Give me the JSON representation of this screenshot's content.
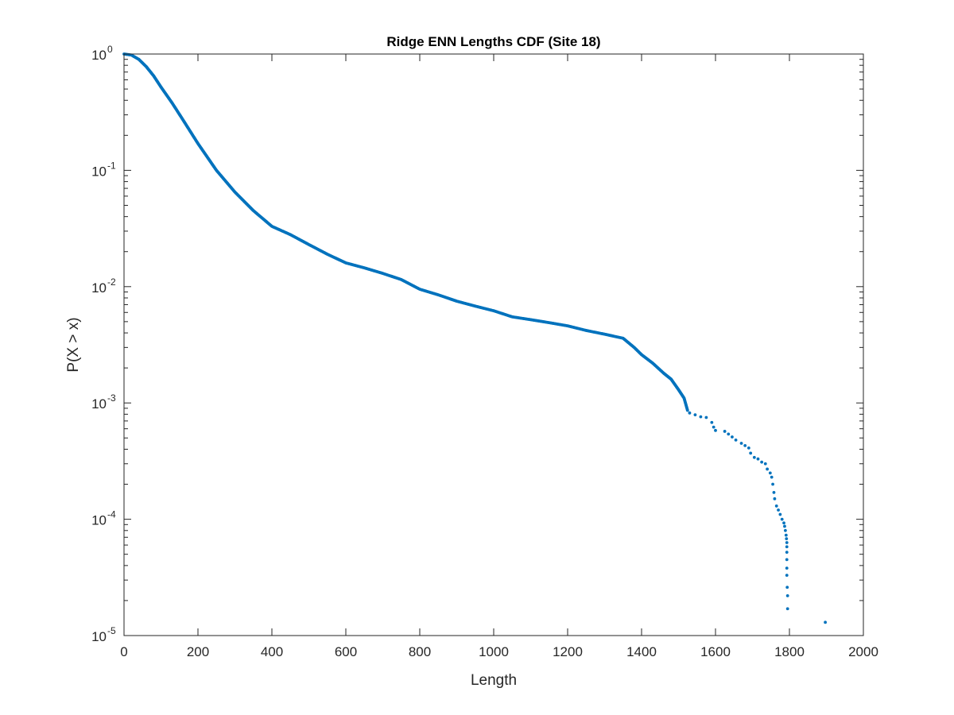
{
  "chart_data": {
    "type": "scatter",
    "title": "Ridge ENN Lengths CDF (Site 18)",
    "xlabel": "Length",
    "ylabel": "P(X > x)",
    "xlim": [
      0,
      2000
    ],
    "ylim": [
      1e-05,
      1
    ],
    "yscale": "log",
    "grid": false,
    "box": true,
    "marker_color": "#0072BD",
    "x_ticks": [
      0,
      200,
      400,
      600,
      800,
      1000,
      1200,
      1400,
      1600,
      1800,
      2000
    ],
    "y_ticks": [
      {
        "value": 1,
        "base": "10",
        "exp": "0"
      },
      {
        "value": 0.1,
        "base": "10",
        "exp": "-1"
      },
      {
        "value": 0.01,
        "base": "10",
        "exp": "-2"
      },
      {
        "value": 0.001,
        "base": "10",
        "exp": "-3"
      },
      {
        "value": 0.0001,
        "base": "10",
        "exp": "-4"
      },
      {
        "value": 1e-05,
        "base": "10",
        "exp": "-5"
      }
    ],
    "series": [
      {
        "curve_points": [
          [
            0,
            1.0
          ],
          [
            20,
            0.98
          ],
          [
            40,
            0.9
          ],
          [
            60,
            0.78
          ],
          [
            80,
            0.65
          ],
          [
            100,
            0.52
          ],
          [
            130,
            0.38
          ],
          [
            160,
            0.27
          ],
          [
            200,
            0.17
          ],
          [
            250,
            0.1
          ],
          [
            300,
            0.065
          ],
          [
            350,
            0.045
          ],
          [
            400,
            0.033
          ],
          [
            450,
            0.028
          ],
          [
            500,
            0.023
          ],
          [
            550,
            0.019
          ],
          [
            600,
            0.016
          ],
          [
            650,
            0.0145
          ],
          [
            700,
            0.013
          ],
          [
            750,
            0.0115
          ],
          [
            800,
            0.0095
          ],
          [
            850,
            0.0085
          ],
          [
            900,
            0.0075
          ],
          [
            950,
            0.0068
          ],
          [
            1000,
            0.0062
          ],
          [
            1050,
            0.0055
          ],
          [
            1100,
            0.0052
          ],
          [
            1150,
            0.0049
          ],
          [
            1200,
            0.0046
          ],
          [
            1250,
            0.0042
          ],
          [
            1300,
            0.0039
          ],
          [
            1350,
            0.0036
          ],
          [
            1380,
            0.003
          ],
          [
            1400,
            0.0026
          ],
          [
            1430,
            0.0022
          ],
          [
            1460,
            0.0018
          ],
          [
            1480,
            0.0016
          ],
          [
            1500,
            0.0013
          ],
          [
            1515,
            0.0011
          ],
          [
            1525,
            0.00085
          ]
        ],
        "points": [
          [
            1530,
            0.00082
          ],
          [
            1545,
            0.00079
          ],
          [
            1560,
            0.00076
          ],
          [
            1575,
            0.00075
          ],
          [
            1590,
            0.00068
          ],
          [
            1595,
            0.00062
          ],
          [
            1600,
            0.00058
          ],
          [
            1625,
            0.00057
          ],
          [
            1635,
            0.00054
          ],
          [
            1645,
            0.00051
          ],
          [
            1655,
            0.00048
          ],
          [
            1670,
            0.00045
          ],
          [
            1680,
            0.00043
          ],
          [
            1690,
            0.00041
          ],
          [
            1695,
            0.00037
          ],
          [
            1705,
            0.00034
          ],
          [
            1715,
            0.00033
          ],
          [
            1725,
            0.00031
          ],
          [
            1735,
            0.0003
          ],
          [
            1740,
            0.00027
          ],
          [
            1748,
            0.00025
          ],
          [
            1752,
            0.00023
          ],
          [
            1755,
            0.0002
          ],
          [
            1758,
            0.00017
          ],
          [
            1760,
            0.00015
          ],
          [
            1765,
            0.00013
          ],
          [
            1770,
            0.00012
          ],
          [
            1775,
            0.00011
          ],
          [
            1780,
            0.0001
          ],
          [
            1785,
            9.3e-05
          ],
          [
            1787,
            8.7e-05
          ],
          [
            1789,
            8e-05
          ],
          [
            1791,
            7.3e-05
          ],
          [
            1792,
            6.8e-05
          ],
          [
            1793,
            6.3e-05
          ],
          [
            1793,
            5.8e-05
          ],
          [
            1793,
            5.2e-05
          ],
          [
            1793,
            4.5e-05
          ],
          [
            1793,
            3.8e-05
          ],
          [
            1793,
            3.3e-05
          ],
          [
            1794,
            2.6e-05
          ],
          [
            1795,
            2.2e-05
          ],
          [
            1795,
            1.7e-05
          ],
          [
            1897,
            1.3e-05
          ]
        ]
      }
    ]
  }
}
